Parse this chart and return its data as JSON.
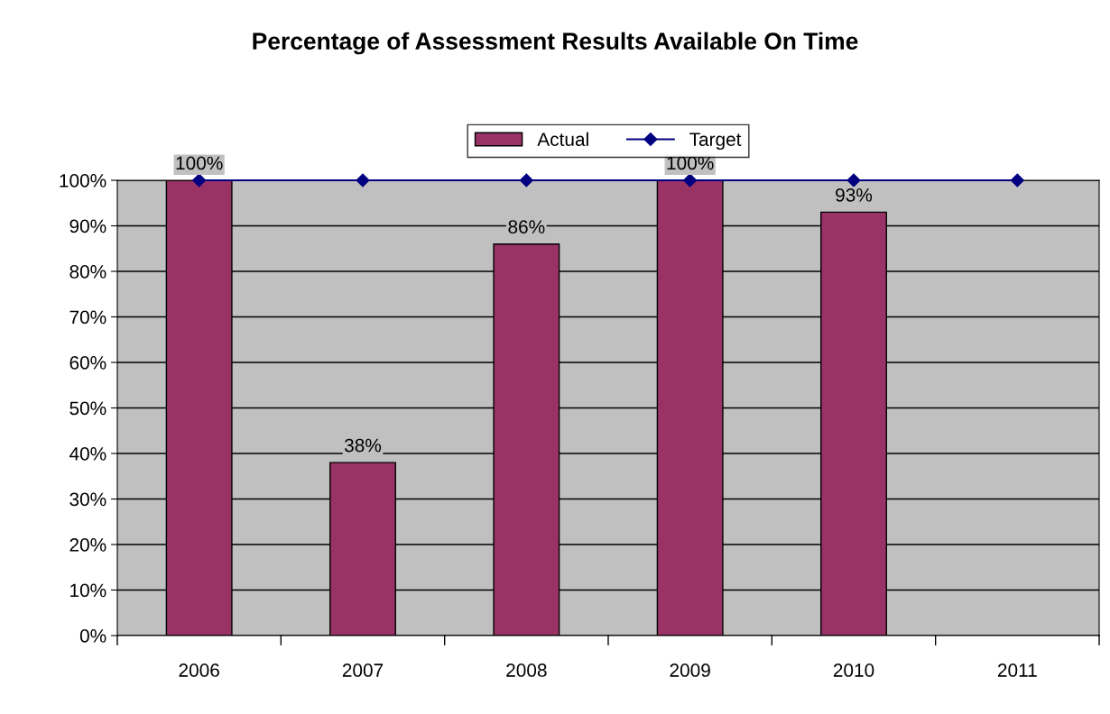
{
  "chart_data": {
    "type": "bar",
    "title": "Percentage of Assessment Results Available On Time",
    "categories": [
      "2006",
      "2007",
      "2008",
      "2009",
      "2010",
      "2011"
    ],
    "series": [
      {
        "name": "Actual",
        "color": "#993366",
        "values": [
          100,
          38,
          86,
          100,
          93,
          null
        ],
        "value_labels": [
          "100%",
          "38%",
          "86%",
          "100%",
          "93%",
          null
        ]
      },
      {
        "name": "Target",
        "type": "line",
        "color": "#000080",
        "marker": "diamond",
        "values": [
          100,
          100,
          100,
          100,
          100,
          100
        ]
      }
    ],
    "ylim": [
      0,
      100
    ],
    "yticks": [
      {
        "value": 0,
        "label": "0%"
      },
      {
        "value": 10,
        "label": "10%"
      },
      {
        "value": 20,
        "label": "20%"
      },
      {
        "value": 30,
        "label": "30%"
      },
      {
        "value": 40,
        "label": "40%"
      },
      {
        "value": 50,
        "label": "50%"
      },
      {
        "value": 60,
        "label": "60%"
      },
      {
        "value": 70,
        "label": "70%"
      },
      {
        "value": 80,
        "label": "80%"
      },
      {
        "value": 90,
        "label": "90%"
      },
      {
        "value": 100,
        "label": "100%"
      }
    ],
    "grid": "y",
    "legend": "top"
  }
}
